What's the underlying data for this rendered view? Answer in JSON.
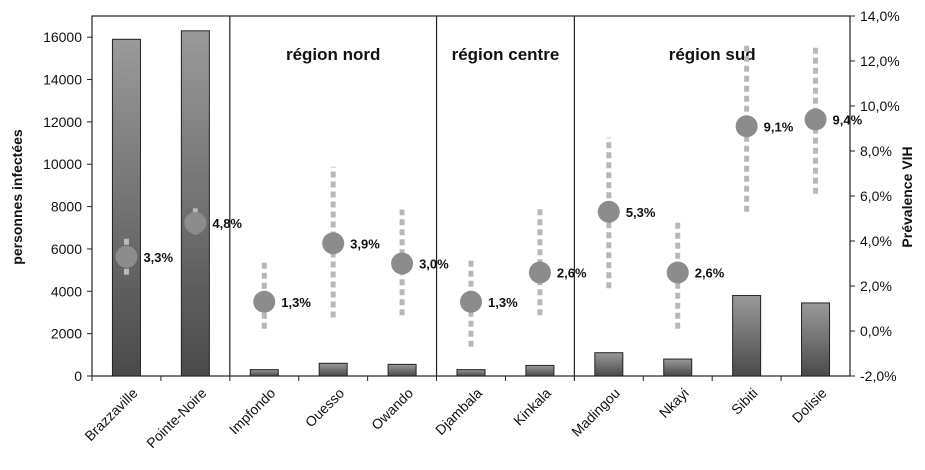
{
  "chart_data": {
    "type": "bar",
    "categories": [
      "Brazzaville",
      "Pointe-Noire",
      "Impfondo",
      "Ouesso",
      "Owando",
      "Djambala",
      "Kinkala",
      "Madingou",
      "Nkayi",
      "Sibiti",
      "Dolisie"
    ],
    "series": [
      {
        "type": "bar",
        "axis": "left",
        "values": [
          15900,
          16300,
          300,
          600,
          550,
          300,
          500,
          1100,
          800,
          3800,
          3450
        ]
      },
      {
        "type": "point-with-range",
        "axis": "right",
        "values": [
          3.3,
          4.8,
          1.3,
          3.9,
          3.0,
          1.3,
          2.6,
          5.3,
          2.6,
          9.1,
          9.4
        ],
        "labels": [
          "3,3%",
          "4,8%",
          "1,3%",
          "3,9%",
          "3,0%",
          "1,3%",
          "2,6%",
          "5,3%",
          "2,6%",
          "9,1%",
          "9,4%"
        ],
        "low": [
          2.5,
          4.3,
          0.1,
          0.6,
          0.7,
          -0.7,
          0.7,
          1.9,
          0.1,
          5.3,
          6.1
        ],
        "high": [
          4.2,
          5.6,
          3.2,
          7.3,
          5.4,
          3.2,
          5.5,
          8.6,
          4.9,
          12.8,
          12.7
        ]
      }
    ],
    "ylabel": "personnes infectées",
    "y2label": "Prévalence VIH",
    "ylim": [
      0,
      17000
    ],
    "y2lim": [
      -2,
      14
    ],
    "yticks": [
      "0",
      "2000",
      "4000",
      "6000",
      "8000",
      "10000",
      "12000",
      "14000",
      "16000"
    ],
    "y2ticks": [
      "-2,0%",
      "0,0%",
      "2,0%",
      "4,0%",
      "6,0%",
      "8,0%",
      "10,0%",
      "12,0%",
      "14,0%"
    ],
    "regions": [
      {
        "label": "région nord",
        "from": 2,
        "to": 4
      },
      {
        "label": "région centre",
        "from": 5,
        "to": 6
      },
      {
        "label": "région sud",
        "from": 7,
        "to": 10
      }
    ],
    "grid": false,
    "colors": {
      "bar": "#7f7f7f",
      "point": "#8c8c8c",
      "range": "#b8b8b8"
    }
  }
}
